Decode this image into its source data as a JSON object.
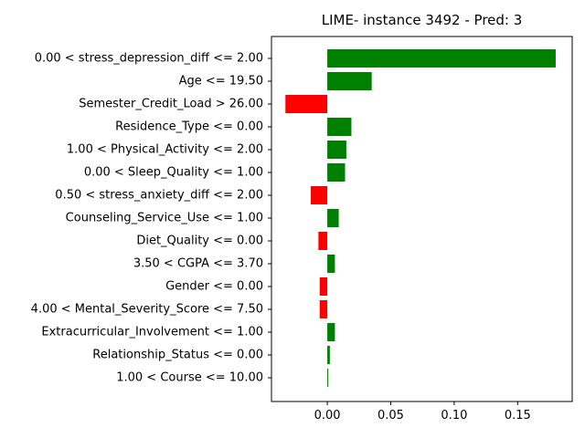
{
  "chart_data": {
    "type": "bar",
    "orientation": "horizontal",
    "title": "LIME- instance 3492 - Pred: 3",
    "xlabel": "",
    "ylabel": "",
    "xlim": [
      -0.044,
      0.193
    ],
    "xticks": [
      0.0,
      0.05,
      0.1,
      0.15
    ],
    "xtick_labels": [
      "0.00",
      "0.05",
      "0.10",
      "0.15"
    ],
    "grid": false,
    "positive_color": "#008000",
    "negative_color": "#ff0000",
    "categories": [
      "0.00 < stress_depression_diff <= 2.00",
      "Age <= 19.50",
      "Semester_Credit_Load > 26.00",
      "Residence_Type <= 0.00",
      "1.00 < Physical_Activity <= 2.00",
      "0.00 < Sleep_Quality <= 1.00",
      "0.50 < stress_anxiety_diff <= 2.00",
      "Counseling_Service_Use <= 1.00",
      "Diet_Quality <= 0.00",
      "3.50 < CGPA <= 3.70",
      "Gender <= 0.00",
      "4.00 < Mental_Severity_Score <= 7.50",
      "Extracurricular_Involvement <= 1.00",
      "Relationship_Status <= 0.00",
      "1.00 < Course <= 10.00"
    ],
    "values": [
      0.18,
      0.035,
      -0.033,
      0.019,
      0.015,
      0.014,
      -0.013,
      0.009,
      -0.007,
      0.006,
      -0.006,
      -0.006,
      0.006,
      0.002,
      0.0008
    ]
  }
}
